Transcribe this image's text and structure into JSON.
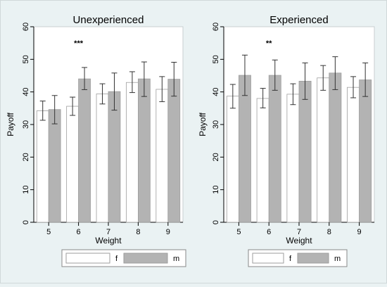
{
  "colors": {
    "background": "#eaf2f3",
    "plot_area": "#ffffff",
    "bar_f_fill": "#ffffff",
    "bar_m_fill": "#b3b3b3",
    "bar_stroke": "#9e9e9e",
    "error_bar": "#333333",
    "text": "#000000"
  },
  "chart_data": [
    {
      "type": "bar",
      "title": "Unexperienced",
      "xlabel": "Weight",
      "ylabel": "Payoff",
      "categories": [
        "5",
        "6",
        "7",
        "8",
        "9"
      ],
      "ylim": [
        0,
        60
      ],
      "yticks": [
        "0",
        "10",
        "20",
        "30",
        "40",
        "50",
        "60"
      ],
      "grid": false,
      "legend": "bottom",
      "series": [
        {
          "name": "f",
          "values": [
            34.2,
            35.6,
            39.4,
            42.9,
            40.8
          ],
          "ci_low": [
            31.3,
            32.8,
            36.3,
            39.8,
            37.0
          ],
          "ci_high": [
            37.2,
            38.4,
            42.5,
            46.2,
            44.7
          ]
        },
        {
          "name": "m",
          "values": [
            34.6,
            44.0,
            40.1,
            44.0,
            43.9
          ],
          "ci_low": [
            30.2,
            40.7,
            34.4,
            38.6,
            38.7
          ],
          "ci_high": [
            38.9,
            47.5,
            45.8,
            49.2,
            49.1
          ]
        }
      ],
      "annotations": [
        {
          "category": "6",
          "text": "***",
          "y": 55
        }
      ]
    },
    {
      "type": "bar",
      "title": "Experienced",
      "xlabel": "Weight",
      "ylabel": "Payoff",
      "categories": [
        "5",
        "6",
        "7",
        "8",
        "9"
      ],
      "ylim": [
        0,
        60
      ],
      "yticks": [
        "0",
        "10",
        "20",
        "30",
        "40",
        "50",
        "60"
      ],
      "grid": false,
      "legend": "bottom",
      "series": [
        {
          "name": "f",
          "values": [
            38.7,
            38.0,
            39.3,
            44.3,
            41.4
          ],
          "ci_low": [
            35.0,
            35.1,
            36.1,
            40.5,
            38.2
          ],
          "ci_high": [
            42.3,
            41.1,
            42.5,
            48.1,
            44.7
          ]
        },
        {
          "name": "m",
          "values": [
            45.1,
            45.1,
            43.3,
            45.8,
            43.7
          ],
          "ci_low": [
            38.9,
            40.5,
            37.7,
            40.7,
            38.6
          ],
          "ci_high": [
            51.3,
            49.8,
            48.9,
            50.8,
            48.9
          ]
        }
      ],
      "annotations": [
        {
          "category": "6",
          "text": "**",
          "y": 55
        }
      ]
    }
  ]
}
